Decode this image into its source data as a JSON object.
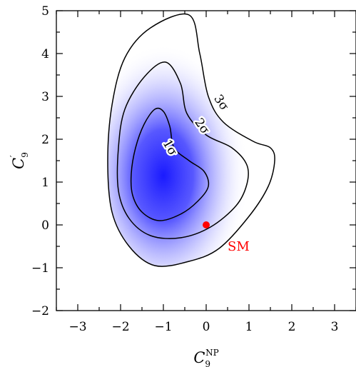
{
  "chart_data": {
    "type": "contour",
    "xlabel": {
      "main": "C",
      "sub": "9",
      "sup": "NP"
    },
    "ylabel": {
      "main": "C",
      "sub": "9",
      "sup": "′"
    },
    "xlim": [
      -3.5,
      3.5
    ],
    "ylim": [
      -2,
      5
    ],
    "xticks": [
      -3,
      -2,
      -1,
      0,
      1,
      2,
      3
    ],
    "yticks": [
      -2,
      -1,
      0,
      1,
      2,
      3,
      4,
      5
    ],
    "xtick_labels": [
      "−3",
      "−2",
      "−1",
      "0",
      "1",
      "2",
      "3"
    ],
    "ytick_labels": [
      "−2",
      "−1",
      "0",
      "1",
      "2",
      "3",
      "4",
      "5"
    ],
    "density": {
      "center": [
        -1.0,
        1.15
      ],
      "color": "#1a1aff"
    },
    "contours": [
      {
        "label": "1σ",
        "label_pos": [
          -0.85,
          1.8
        ],
        "label_rotation": 60,
        "points": [
          [
            -1.2,
            2.7
          ],
          [
            -1.45,
            2.35
          ],
          [
            -1.65,
            1.8
          ],
          [
            -1.75,
            1.2
          ],
          [
            -1.72,
            0.7
          ],
          [
            -1.5,
            0.3
          ],
          [
            -1.1,
            0.1
          ],
          [
            -0.6,
            0.25
          ],
          [
            -0.2,
            0.55
          ],
          [
            0.05,
            0.9
          ],
          [
            -0.05,
            1.25
          ],
          [
            -0.4,
            1.5
          ],
          [
            -0.75,
            1.8
          ],
          [
            -0.85,
            2.3
          ],
          [
            -1.0,
            2.65
          ]
        ]
      },
      {
        "label": "2σ",
        "label_pos": [
          -0.1,
          2.3
        ],
        "label_rotation": 55,
        "points": [
          [
            -0.95,
            3.8
          ],
          [
            -1.45,
            3.45
          ],
          [
            -1.9,
            2.7
          ],
          [
            -2.05,
            1.8
          ],
          [
            -2.05,
            0.8
          ],
          [
            -1.8,
            0.15
          ],
          [
            -1.3,
            -0.25
          ],
          [
            -0.6,
            -0.3
          ],
          [
            0.1,
            -0.05
          ],
          [
            0.7,
            0.45
          ],
          [
            0.95,
            0.95
          ],
          [
            0.95,
            1.4
          ],
          [
            0.6,
            1.8
          ],
          [
            0.0,
            2.1
          ],
          [
            -0.45,
            2.6
          ],
          [
            -0.6,
            3.3
          ]
        ]
      },
      {
        "label": "3σ",
        "label_pos": [
          0.35,
          2.85
        ],
        "label_rotation": 55,
        "points": [
          [
            -0.4,
            4.9
          ],
          [
            -1.3,
            4.6
          ],
          [
            -1.9,
            3.9
          ],
          [
            -2.2,
            2.8
          ],
          [
            -2.3,
            1.5
          ],
          [
            -2.2,
            0.3
          ],
          [
            -1.8,
            -0.5
          ],
          [
            -1.2,
            -0.95
          ],
          [
            -0.4,
            -0.85
          ],
          [
            0.3,
            -0.55
          ],
          [
            1.0,
            0.2
          ],
          [
            1.45,
            0.9
          ],
          [
            1.6,
            1.5
          ],
          [
            1.5,
            1.8
          ],
          [
            1.1,
            1.95
          ],
          [
            0.4,
            2.4
          ],
          [
            0.05,
            3.0
          ],
          [
            -0.15,
            4.0
          ]
        ]
      }
    ],
    "points": [
      {
        "label": "SM",
        "x": 0,
        "y": 0,
        "color": "#ff0000",
        "label_pos": [
          0.5,
          -0.5
        ]
      }
    ]
  }
}
